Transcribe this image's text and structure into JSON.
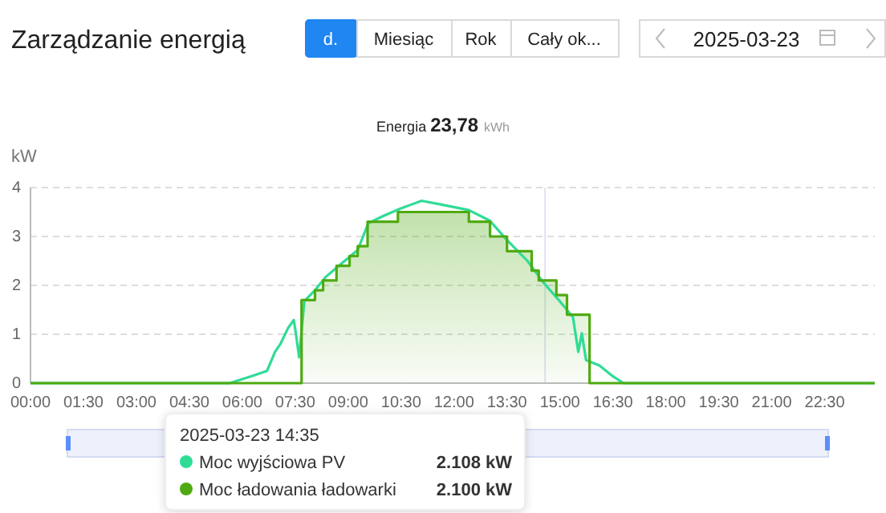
{
  "chart_data": {
    "type": "line",
    "title": "Zarządzanie energią",
    "subtitle": "Energia 23,78 kWh",
    "ylabel": "kW",
    "annotations": [
      "d.",
      "Miesiąc",
      "Rok",
      "Cały ok...",
      "2025-03-23",
      "2025-03-23 14:35",
      "2.108 kW",
      "2.100 kW"
    ],
    "xlim": [
      0,
      23.92
    ],
    "ylim": [
      0,
      4
    ],
    "yticks": [
      0,
      1,
      2,
      3,
      4
    ],
    "xticks": [
      {
        "value": 0,
        "label": "00:00"
      },
      {
        "value": 1.5,
        "label": "01:30"
      },
      {
        "value": 3,
        "label": "03:00"
      },
      {
        "value": 4.5,
        "label": "04:30"
      },
      {
        "value": 6,
        "label": "06:00"
      },
      {
        "value": 7.5,
        "label": "07:30"
      },
      {
        "value": 9,
        "label": "09:00"
      },
      {
        "value": 10.5,
        "label": "10:30"
      },
      {
        "value": 12,
        "label": "12:00"
      },
      {
        "value": 13.5,
        "label": "13:30"
      },
      {
        "value": 15,
        "label": "15:00"
      },
      {
        "value": 16.5,
        "label": "16:30"
      },
      {
        "value": 18,
        "label": "18:00"
      },
      {
        "value": 19.5,
        "label": "19:30"
      },
      {
        "value": 21,
        "label": "21:00"
      },
      {
        "value": 22.5,
        "label": "22:30"
      }
    ],
    "grid": "y",
    "legend": "bottom",
    "marker": "none",
    "ref_lines": [
      {
        "axis": "x",
        "value": 14.58,
        "color": "#dde3f0"
      }
    ],
    "series": [
      {
        "name": "Moc wyjściowa PV",
        "color": "#2fdc96",
        "x": [
          0,
          5.64,
          6.25,
          6.7,
          6.93,
          7.08,
          7.3,
          7.46,
          7.53,
          7.61,
          7.76,
          8.06,
          8.36,
          8.82,
          9.27,
          9.57,
          10.03,
          10.48,
          11.08,
          11.66,
          12.42,
          13.02,
          13.48,
          14.08,
          14.53,
          14.99,
          15.37,
          15.52,
          15.62,
          15.74,
          16.12,
          16.5,
          16.8,
          23.92
        ],
        "values": [
          0,
          0,
          0.14,
          0.25,
          0.64,
          0.8,
          1.13,
          1.29,
          0.96,
          0.53,
          1.68,
          1.9,
          2.17,
          2.45,
          2.72,
          3.27,
          3.43,
          3.57,
          3.73,
          3.65,
          3.54,
          3.32,
          2.94,
          2.5,
          2.06,
          1.68,
          1.35,
          0.64,
          1.02,
          0.47,
          0.36,
          0.14,
          0,
          0
        ]
      },
      {
        "name": "Moc ładowania ładowarki",
        "color": "#4faa12",
        "type": "area",
        "x": [
          0,
          7.68,
          8.06,
          8.29,
          8.67,
          9.04,
          9.27,
          9.55,
          10.41,
          12.42,
          13.02,
          13.5,
          14.2,
          14.4,
          14.9,
          15.2,
          15.84,
          23.92
        ],
        "values": [
          0,
          1.7,
          1.9,
          2.1,
          2.4,
          2.6,
          2.8,
          3.3,
          3.5,
          3.3,
          3.0,
          2.7,
          2.3,
          2.1,
          1.8,
          1.4,
          0,
          0
        ]
      }
    ]
  }
}
